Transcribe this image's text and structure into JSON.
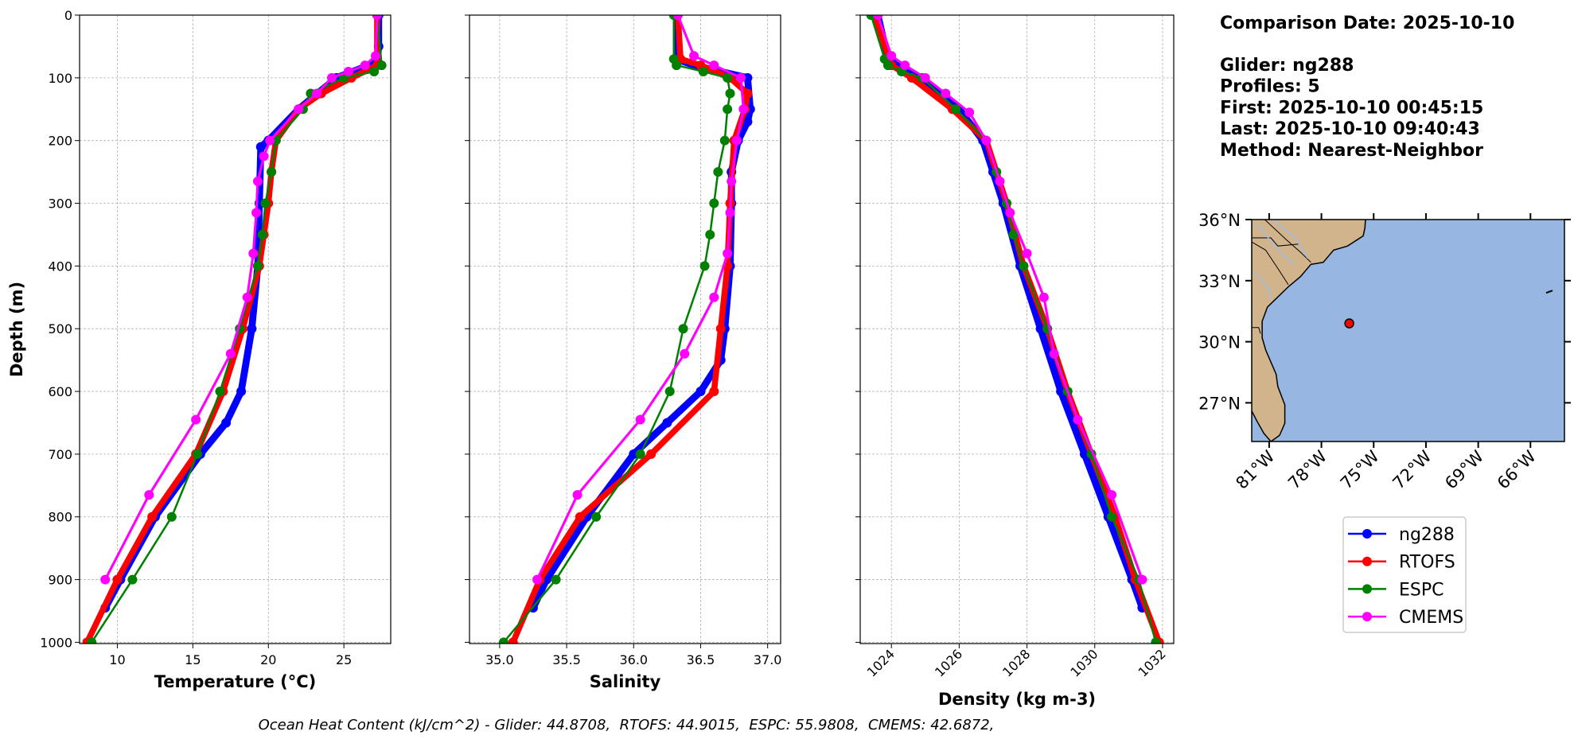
{
  "chart_data": [
    {
      "type": "line",
      "xlabel": "Temperature (°C)",
      "ylabel": "Depth (m)",
      "xlim": [
        7.5,
        28.1
      ],
      "xticks": [
        10,
        15,
        20,
        25
      ],
      "ylim": [
        1002,
        0
      ],
      "yticks": [
        0,
        100,
        200,
        300,
        400,
        500,
        600,
        700,
        800,
        900,
        1000
      ],
      "grid": true,
      "series": [
        {
          "name": "ng288",
          "color": "#0000ff",
          "width": 7,
          "x": [
            27.3,
            27.3,
            27.2,
            24.5,
            22.0,
            20.0,
            19.5,
            19.4,
            19.3,
            18.9,
            18.2,
            17.2,
            15.5,
            12.5,
            10.2,
            9.2
          ],
          "values": [
            0,
            50,
            75,
            100,
            150,
            200,
            210,
            300,
            400,
            500,
            600,
            650,
            700,
            800,
            900,
            945
          ]
        },
        {
          "name": "RTOFS",
          "color": "#ff0000",
          "width": 6,
          "x": [
            27.2,
            27.2,
            25.5,
            23.5,
            22.0,
            20.5,
            20.2,
            20.0,
            19.7,
            19.4,
            18.3,
            17.0,
            15.2,
            12.3,
            10.0,
            8.0
          ],
          "values": [
            0,
            80,
            100,
            125,
            150,
            200,
            250,
            300,
            350,
            400,
            500,
            600,
            700,
            800,
            900,
            1000
          ]
        },
        {
          "name": "ESPC",
          "color": "#008000",
          "width": 2,
          "x": [
            27.2,
            27.5,
            27.0,
            25.0,
            22.8,
            22.3,
            20.5,
            20.2,
            19.8,
            19.6,
            19.3,
            18.1,
            16.8,
            15.3,
            13.6,
            11.0,
            8.3
          ],
          "values": [
            0,
            80,
            90,
            100,
            125,
            150,
            200,
            250,
            300,
            350,
            400,
            500,
            600,
            700,
            800,
            900,
            1000
          ]
        },
        {
          "name": "CMEMS",
          "color": "#ff00ff",
          "width": 2.5,
          "x": [
            27.2,
            27.1,
            26.4,
            25.3,
            24.2,
            23.2,
            22.0,
            20.1,
            19.7,
            19.3,
            19.2,
            19.0,
            18.6,
            17.5,
            15.2,
            12.1,
            9.2
          ],
          "values": [
            0,
            65,
            80,
            90,
            100,
            125,
            150,
            200,
            225,
            265,
            315,
            380,
            450,
            540,
            645,
            765,
            900
          ]
        }
      ]
    },
    {
      "type": "line",
      "xlabel": "Salinity",
      "xlim": [
        34.775,
        37.097
      ],
      "xticks": [
        {
          "value": 35,
          "label": "35.0"
        },
        35.5,
        {
          "value": 36,
          "label": "36.0"
        },
        36.5,
        {
          "value": 37,
          "label": "37.0"
        }
      ],
      "ylim": [
        1002,
        0
      ],
      "yticks": [
        0,
        100,
        200,
        300,
        400,
        500,
        600,
        700,
        800,
        900,
        1000
      ],
      "grid": true,
      "series": [
        {
          "color": "#0000ff",
          "width": 7,
          "x": [
            36.32,
            36.32,
            36.45,
            36.85,
            36.87,
            36.85,
            36.78,
            36.73,
            36.73,
            36.72,
            36.68,
            36.65,
            36.5,
            36.25,
            36.0,
            35.65,
            35.35,
            35.25
          ],
          "values": [
            0,
            70,
            80,
            100,
            150,
            170,
            200,
            250,
            300,
            400,
            500,
            550,
            600,
            650,
            700,
            800,
            900,
            945
          ]
        },
        {
          "color": "#ff0000",
          "width": 6,
          "x": [
            36.33,
            36.35,
            36.5,
            36.72,
            36.85,
            36.83,
            36.75,
            36.72,
            36.7,
            36.65,
            36.6,
            36.13,
            35.6,
            35.3,
            35.1
          ],
          "values": [
            0,
            70,
            80,
            100,
            125,
            150,
            200,
            300,
            400,
            500,
            600,
            700,
            800,
            900,
            1000
          ]
        },
        {
          "color": "#008000",
          "width": 2,
          "x": [
            36.3,
            36.3,
            36.32,
            36.52,
            36.7,
            36.72,
            36.7,
            36.68,
            36.63,
            36.6,
            36.57,
            36.53,
            36.37,
            36.27,
            36.05,
            35.72,
            35.42,
            35.03
          ],
          "values": [
            0,
            70,
            80,
            90,
            100,
            125,
            150,
            200,
            250,
            300,
            350,
            400,
            500,
            600,
            700,
            800,
            900,
            1000
          ]
        },
        {
          "color": "#ff00ff",
          "width": 2.5,
          "x": [
            36.33,
            36.45,
            36.6,
            36.8,
            36.82,
            36.77,
            36.73,
            36.72,
            36.7,
            36.6,
            36.38,
            36.05,
            35.58,
            35.28
          ],
          "values": [
            0,
            65,
            80,
            100,
            150,
            200,
            265,
            315,
            380,
            450,
            540,
            645,
            765,
            900
          ]
        }
      ]
    },
    {
      "type": "line",
      "xlabel": "Density (kg m-3)",
      "xlim": [
        1023.08,
        1032.33
      ],
      "xticks": [
        1024,
        1026,
        1028,
        1030,
        1032
      ],
      "xtick_rotation": -45,
      "ylim": [
        1002,
        0
      ],
      "yticks": [
        0,
        100,
        200,
        300,
        400,
        500,
        600,
        700,
        800,
        900,
        1000
      ],
      "grid": true,
      "series": [
        {
          "color": "#0000ff",
          "width": 7,
          "x": [
            1023.6,
            1023.9,
            1024.8,
            1026.0,
            1026.7,
            1027.0,
            1027.3,
            1027.8,
            1028.4,
            1029.0,
            1029.7,
            1030.4,
            1031.1,
            1031.4
          ],
          "values": [
            0,
            70,
            100,
            150,
            200,
            250,
            300,
            400,
            500,
            600,
            700,
            800,
            900,
            945
          ]
        },
        {
          "color": "#ff0000",
          "width": 6,
          "x": [
            1023.5,
            1024.0,
            1024.6,
            1025.8,
            1026.8,
            1027.4,
            1027.9,
            1028.6,
            1029.2,
            1029.9,
            1030.6,
            1031.2,
            1031.9
          ],
          "values": [
            0,
            80,
            100,
            150,
            200,
            300,
            400,
            500,
            600,
            700,
            800,
            900,
            1000
          ]
        },
        {
          "color": "#008000",
          "width": 2,
          "x": [
            1023.4,
            1023.8,
            1023.9,
            1024.3,
            1024.9,
            1025.9,
            1026.8,
            1027.1,
            1027.4,
            1027.6,
            1027.9,
            1028.6,
            1029.2,
            1029.9,
            1030.5,
            1031.3,
            1031.8
          ],
          "values": [
            0,
            70,
            80,
            90,
            100,
            150,
            200,
            250,
            300,
            350,
            400,
            500,
            600,
            700,
            800,
            900,
            1000
          ]
        },
        {
          "color": "#ff00ff",
          "width": 2.5,
          "x": [
            1023.6,
            1024.0,
            1024.4,
            1025.0,
            1025.6,
            1026.3,
            1026.8,
            1027.2,
            1027.5,
            1028.0,
            1028.5,
            1028.8,
            1029.5,
            1030.5,
            1031.4
          ],
          "values": [
            0,
            65,
            80,
            100,
            125,
            155,
            200,
            265,
            315,
            380,
            450,
            540,
            645,
            765,
            900
          ]
        }
      ]
    },
    {
      "type": "map",
      "xlim": [
        -82,
        -64.05
      ],
      "xticks": [
        {
          "value": -81,
          "label": "81°W"
        },
        {
          "value": -78,
          "label": "78°W"
        },
        {
          "value": -75,
          "label": "75°W"
        },
        {
          "value": -72,
          "label": "72°W"
        },
        {
          "value": -69,
          "label": "69°W"
        },
        {
          "value": -66,
          "label": "66°W"
        }
      ],
      "ylim": [
        25.1,
        36
      ],
      "yticks": [
        {
          "value": 27,
          "label": "27°N"
        },
        {
          "value": 30,
          "label": "30°N"
        },
        {
          "value": 33,
          "label": "33°N"
        },
        {
          "value": 36,
          "label": "36°N"
        }
      ],
      "x": [
        -76.4
      ],
      "values": [
        30.9
      ],
      "color": "#ff0000"
    }
  ],
  "info": {
    "title": "Comparison Date: 2025-10-10",
    "lines": [
      "Glider: ng288",
      "Profiles: 5",
      "First: 2025-10-10 00:45:15",
      "Last: 2025-10-10 09:40:43",
      "Method: Nearest-Neighbor"
    ]
  },
  "footer": "Ocean Heat Content (kJ/cm^2) - Glider: 44.8708,  RTOFS: 44.9015,  ESPC: 55.9808,  CMEMS: 42.6872,"
}
